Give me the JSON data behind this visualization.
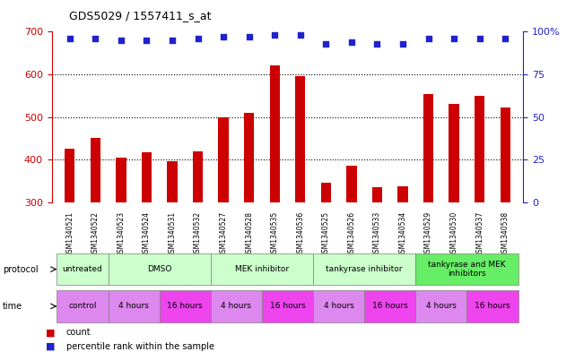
{
  "title": "GDS5029 / 1557411_s_at",
  "samples": [
    "GSM1340521",
    "GSM1340522",
    "GSM1340523",
    "GSM1340524",
    "GSM1340531",
    "GSM1340532",
    "GSM1340527",
    "GSM1340528",
    "GSM1340535",
    "GSM1340536",
    "GSM1340525",
    "GSM1340526",
    "GSM1340533",
    "GSM1340534",
    "GSM1340529",
    "GSM1340530",
    "GSM1340537",
    "GSM1340538"
  ],
  "counts": [
    425,
    450,
    405,
    418,
    397,
    420,
    500,
    510,
    620,
    596,
    347,
    385,
    335,
    338,
    554,
    530,
    550,
    522
  ],
  "percentile": [
    96,
    96,
    95,
    95,
    95,
    96,
    97,
    97,
    98,
    98,
    93,
    94,
    93,
    93,
    96,
    96,
    96,
    96
  ],
  "ylim_left": [
    300,
    700
  ],
  "ylim_right": [
    0,
    100
  ],
  "yticks_left": [
    300,
    400,
    500,
    600,
    700
  ],
  "yticks_right": [
    0,
    25,
    50,
    75,
    100
  ],
  "ytick_right_labels": [
    "0",
    "25",
    "50",
    "75",
    "100%"
  ],
  "proto_data": [
    {
      "label": "untreated",
      "start": 0,
      "end": 2,
      "color": "#ccffcc"
    },
    {
      "label": "DMSO",
      "start": 2,
      "end": 6,
      "color": "#ccffcc"
    },
    {
      "label": "MEK inhibitor",
      "start": 6,
      "end": 10,
      "color": "#ccffcc"
    },
    {
      "label": "tankyrase inhibitor",
      "start": 10,
      "end": 14,
      "color": "#ccffcc"
    },
    {
      "label": "tankyrase and MEK\ninhibitors",
      "start": 14,
      "end": 18,
      "color": "#66ee66"
    }
  ],
  "time_data": [
    {
      "label": "control",
      "start": 0,
      "end": 2,
      "color": "#dd88ee"
    },
    {
      "label": "4 hours",
      "start": 2,
      "end": 4,
      "color": "#dd88ee"
    },
    {
      "label": "16 hours",
      "start": 4,
      "end": 6,
      "color": "#ee44ee"
    },
    {
      "label": "4 hours",
      "start": 6,
      "end": 8,
      "color": "#dd88ee"
    },
    {
      "label": "16 hours",
      "start": 8,
      "end": 10,
      "color": "#ee44ee"
    },
    {
      "label": "4 hours",
      "start": 10,
      "end": 12,
      "color": "#dd88ee"
    },
    {
      "label": "16 hours",
      "start": 12,
      "end": 14,
      "color": "#ee44ee"
    },
    {
      "label": "4 hours",
      "start": 14,
      "end": 16,
      "color": "#dd88ee"
    },
    {
      "label": "16 hours",
      "start": 16,
      "end": 18,
      "color": "#ee44ee"
    }
  ],
  "bar_color": "#cc0000",
  "dot_color": "#2222cc",
  "left_axis_color": "#cc0000",
  "right_axis_color": "#2222cc",
  "background_color": "#ffffff",
  "tick_label_bg": "#cccccc"
}
